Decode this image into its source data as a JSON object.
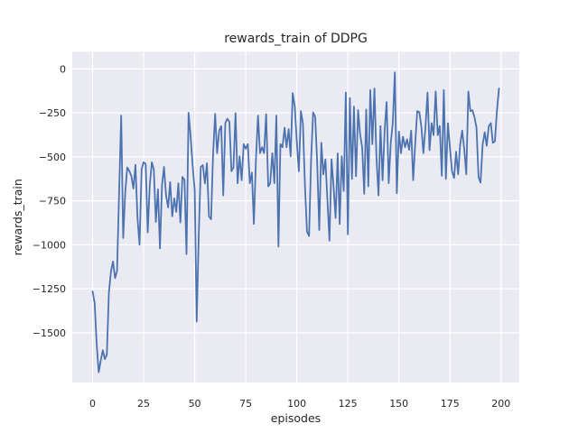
{
  "figure": {
    "title": "rewards_train of DDPG",
    "xlabel": "episodes",
    "ylabel": "rewards_train"
  },
  "colors": {
    "figure_background": "#ffffff",
    "axes_background": "#eaeaf2",
    "grid": "#ffffff",
    "line": "#4c72b0",
    "text": "#262626"
  },
  "chart_data": {
    "type": "line",
    "title": "rewards_train of DDPG",
    "xlabel": "episodes",
    "ylabel": "rewards_train",
    "grid": true,
    "legend": false,
    "x_ticks": [
      0,
      25,
      50,
      75,
      100,
      125,
      150,
      175,
      200
    ],
    "y_ticks": [
      0,
      -250,
      -500,
      -750,
      -1000,
      -1250,
      -1500
    ],
    "xlim": [
      -9.95,
      208.95
    ],
    "ylim": [
      -1783,
      97
    ],
    "series": [
      {
        "name": "rewards_train",
        "color": "#4c72b0",
        "x_start": 0,
        "x_step": 1,
        "values": [
          -1265,
          -1330,
          -1560,
          -1725,
          -1660,
          -1600,
          -1650,
          -1625,
          -1270,
          -1150,
          -1095,
          -1190,
          -1150,
          -700,
          -265,
          -962,
          -700,
          -560,
          -580,
          -610,
          -680,
          -545,
          -845,
          -1000,
          -570,
          -531,
          -540,
          -930,
          -662,
          -531,
          -572,
          -870,
          -685,
          -1020,
          -662,
          -557,
          -720,
          -788,
          -643,
          -838,
          -736,
          -813,
          -650,
          -873,
          -614,
          -631,
          -1053,
          -249,
          -380,
          -550,
          -690,
          -1437,
          -941,
          -557,
          -547,
          -651,
          -536,
          -838,
          -855,
          -490,
          -255,
          -479,
          -351,
          -325,
          -719,
          -308,
          -283,
          -300,
          -582,
          -560,
          -252,
          -650,
          -497,
          -633,
          -428,
          -454,
          -428,
          -650,
          -590,
          -881,
          -514,
          -265,
          -479,
          -445,
          -479,
          -257,
          -668,
          -650,
          -479,
          -650,
          -265,
          -1010,
          -428,
          -445,
          -334,
          -445,
          -342,
          -497,
          -137,
          -214,
          -411,
          -582,
          -240,
          -310,
          -668,
          -924,
          -950,
          -513,
          -248,
          -273,
          -530,
          -916,
          -420,
          -600,
          -514,
          -753,
          -976,
          -514,
          -668,
          -848,
          -480,
          -882,
          -497,
          -694,
          -134,
          -940,
          -165,
          -625,
          -214,
          -610,
          -235,
          -368,
          -445,
          -710,
          -231,
          -668,
          -120,
          -428,
          -111,
          -500,
          -719,
          -325,
          -633,
          -350,
          -188,
          -650,
          -420,
          -308,
          -20,
          -707,
          -356,
          -479,
          -385,
          -445,
          -400,
          -460,
          -351,
          -633,
          -420,
          -240,
          -245,
          -330,
          -479,
          -330,
          -134,
          -462,
          -308,
          -377,
          -128,
          -377,
          -325,
          -608,
          -120,
          -625,
          -308,
          -450,
          -582,
          -620,
          -471,
          -599,
          -430,
          -351,
          -460,
          -599,
          -128,
          -240,
          -235,
          -275,
          -334,
          -616,
          -647,
          -430,
          -360,
          -437,
          -325,
          -308,
          -420,
          -411,
          -240,
          -111
        ]
      }
    ]
  }
}
